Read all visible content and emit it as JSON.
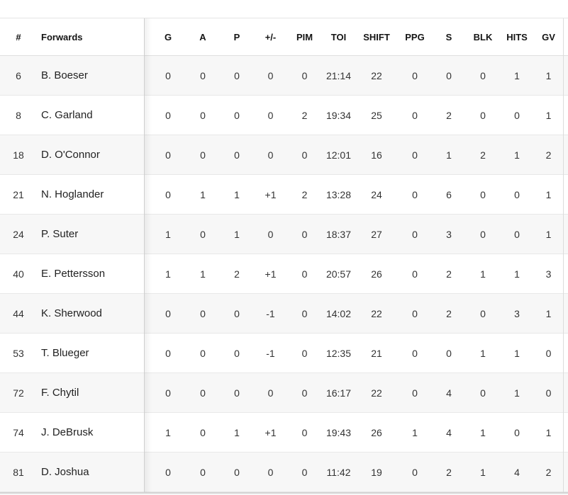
{
  "table": {
    "group_column_header": "#",
    "group_label": "Forwards",
    "stat_headers": [
      "G",
      "A",
      "P",
      "+/-",
      "PIM",
      "TOI",
      "SHIFT",
      "PPG",
      "S",
      "BLK",
      "HITS",
      "GV"
    ],
    "rows": [
      {
        "num": "6",
        "name": "B. Boeser",
        "stats": [
          "0",
          "0",
          "0",
          "0",
          "0",
          "21:14",
          "22",
          "0",
          "0",
          "0",
          "1",
          "1"
        ]
      },
      {
        "num": "8",
        "name": "C. Garland",
        "stats": [
          "0",
          "0",
          "0",
          "0",
          "2",
          "19:34",
          "25",
          "0",
          "2",
          "0",
          "0",
          "1"
        ]
      },
      {
        "num": "18",
        "name": "D. O'Connor",
        "stats": [
          "0",
          "0",
          "0",
          "0",
          "0",
          "12:01",
          "16",
          "0",
          "1",
          "2",
          "1",
          "2"
        ]
      },
      {
        "num": "21",
        "name": "N. Hoglander",
        "stats": [
          "0",
          "1",
          "1",
          "+1",
          "2",
          "13:28",
          "24",
          "0",
          "6",
          "0",
          "0",
          "1"
        ]
      },
      {
        "num": "24",
        "name": "P. Suter",
        "stats": [
          "1",
          "0",
          "1",
          "0",
          "0",
          "18:37",
          "27",
          "0",
          "3",
          "0",
          "0",
          "1"
        ]
      },
      {
        "num": "40",
        "name": "E. Pettersson",
        "stats": [
          "1",
          "1",
          "2",
          "+1",
          "0",
          "20:57",
          "26",
          "0",
          "2",
          "1",
          "1",
          "3"
        ]
      },
      {
        "num": "44",
        "name": "K. Sherwood",
        "stats": [
          "0",
          "0",
          "0",
          "-1",
          "0",
          "14:02",
          "22",
          "0",
          "2",
          "0",
          "3",
          "1"
        ]
      },
      {
        "num": "53",
        "name": "T. Blueger",
        "stats": [
          "0",
          "0",
          "0",
          "-1",
          "0",
          "12:35",
          "21",
          "0",
          "0",
          "1",
          "1",
          "0"
        ]
      },
      {
        "num": "72",
        "name": "F. Chytil",
        "stats": [
          "0",
          "0",
          "0",
          "0",
          "0",
          "16:17",
          "22",
          "0",
          "4",
          "0",
          "1",
          "0"
        ]
      },
      {
        "num": "74",
        "name": "J. DeBrusk",
        "stats": [
          "1",
          "0",
          "1",
          "+1",
          "0",
          "19:43",
          "26",
          "1",
          "4",
          "1",
          "0",
          "1"
        ]
      },
      {
        "num": "81",
        "name": "D. Joshua",
        "stats": [
          "0",
          "0",
          "0",
          "0",
          "0",
          "11:42",
          "19",
          "0",
          "2",
          "1",
          "4",
          "2"
        ]
      }
    ]
  },
  "colors": {
    "row_stripe": "#f7f7f7",
    "row_border": "#e8e8e8",
    "pane_divider": "#cfcfcf",
    "header_text": "#141414",
    "cell_text": "#333333"
  }
}
